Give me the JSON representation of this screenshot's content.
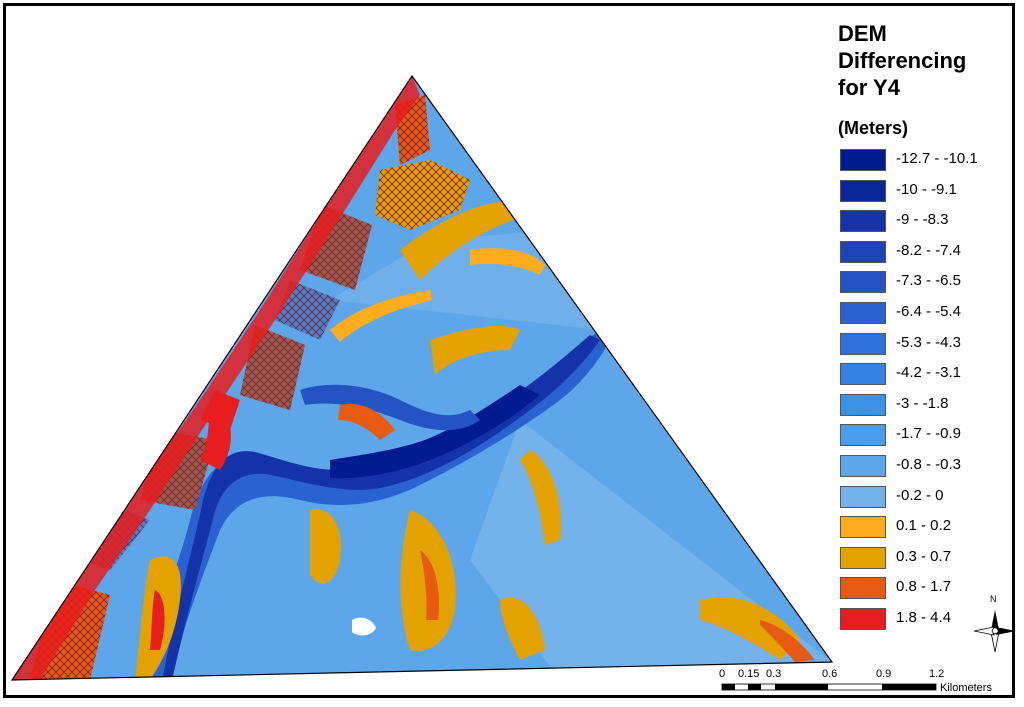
{
  "legend": {
    "title_lines": [
      "DEM",
      "Differencing",
      "for Y4"
    ],
    "unit": "(Meters)",
    "classes": [
      {
        "label": "-12.7 - -10.1",
        "color": "#001a8f"
      },
      {
        "label": "-10 - -9.1",
        "color": "#0a2797"
      },
      {
        "label": "-9 - -8.3",
        "color": "#1433a8"
      },
      {
        "label": "-8.2 - -7.4",
        "color": "#1d43b9"
      },
      {
        "label": "-7.3 - -6.5",
        "color": "#2453c4"
      },
      {
        "label": "-6.4 - -5.4",
        "color": "#2a62d1"
      },
      {
        "label": "-5.3 - -4.3",
        "color": "#2e71dc"
      },
      {
        "label": "-4.2 - -3.1",
        "color": "#3482e2"
      },
      {
        "label": "-3 - -1.8",
        "color": "#3b93e8"
      },
      {
        "label": "-1.7 - -0.9",
        "color": "#4a9ced"
      },
      {
        "label": "-0.8 - -0.3",
        "color": "#5ea6ea"
      },
      {
        "label": "-0.2 - 0",
        "color": "#73b2ea"
      },
      {
        "label": "0.1 - 0.2",
        "color": "#ffac1c"
      },
      {
        "label": "0.3 - 0.7",
        "color": "#e3a200"
      },
      {
        "label": "0.8 - 1.7",
        "color": "#e65a12"
      },
      {
        "label": "1.8 - 4.4",
        "color": "#e81d1d"
      }
    ]
  },
  "north": {
    "letter": "N"
  },
  "scale": {
    "ticks": [
      "0",
      "0.15",
      "0.3",
      "0.6",
      "0.9",
      "1.2"
    ],
    "unit": "Kilometers"
  },
  "map_colors": {
    "background": "#5ea6ea",
    "channel_deep": "#1433a8",
    "channel_mid": "#2a62d1",
    "deposit_light": "#ffac1c",
    "deposit": "#e3a200",
    "erosion_mid": "#e65a12",
    "erosion_high": "#e81d1d",
    "hatched_parcel": "#9a5a52",
    "outline": "#000000"
  }
}
